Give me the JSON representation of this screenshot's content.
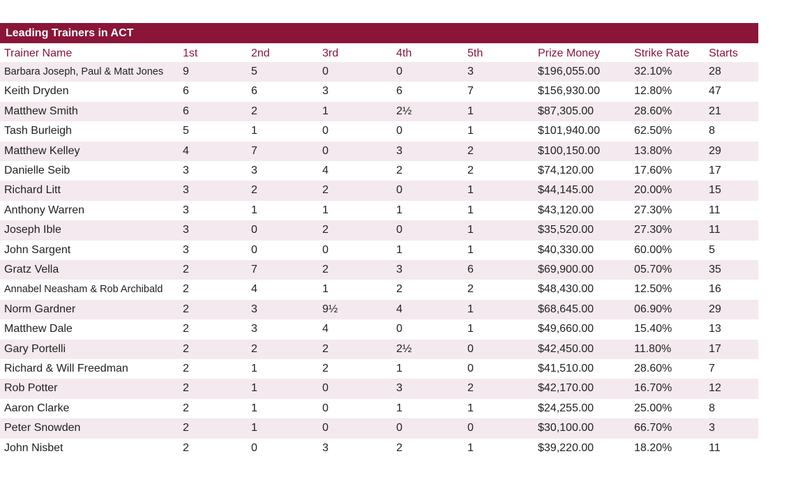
{
  "header": {
    "title": "Leading Trainers in ACT"
  },
  "table": {
    "columns": [
      "Trainer Name",
      "1st",
      "2nd",
      "3rd",
      "4th",
      "5th",
      "Prize Money",
      "Strike Rate",
      "Starts"
    ],
    "rows": [
      [
        "Barbara Joseph, Paul & Matt Jones",
        "9",
        "5",
        "0",
        "0",
        "3",
        "$196,055.00",
        "32.10%",
        "28"
      ],
      [
        "Keith Dryden",
        "6",
        "6",
        "3",
        "6",
        "7",
        "$156,930.00",
        "12.80%",
        "47"
      ],
      [
        "Matthew Smith",
        "6",
        "2",
        "1",
        "2½",
        "1",
        "$87,305.00",
        "28.60%",
        "21"
      ],
      [
        "Tash Burleigh",
        "5",
        "1",
        "0",
        "0",
        "1",
        "$101,940.00",
        "62.50%",
        "8"
      ],
      [
        "Matthew Kelley",
        "4",
        "7",
        "0",
        "3",
        "2",
        "$100,150.00",
        "13.80%",
        "29"
      ],
      [
        "Danielle Seib",
        "3",
        "3",
        "4",
        "2",
        "2",
        "$74,120.00",
        "17.60%",
        "17"
      ],
      [
        "Richard Litt",
        "3",
        "2",
        "2",
        "0",
        "1",
        "$44,145.00",
        "20.00%",
        "15"
      ],
      [
        "Anthony Warren",
        "3",
        "1",
        "1",
        "1",
        "1",
        "$43,120.00",
        "27.30%",
        "11"
      ],
      [
        "Joseph Ible",
        "3",
        "0",
        "2",
        "0",
        "1",
        "$35,520.00",
        "27.30%",
        "11"
      ],
      [
        "John Sargent",
        "3",
        "0",
        "0",
        "1",
        "1",
        "$40,330.00",
        "60.00%",
        "5"
      ],
      [
        "Gratz Vella",
        "2",
        "7",
        "2",
        "3",
        "6",
        "$69,900.00",
        "05.70%",
        "35"
      ],
      [
        "Annabel Neasham & Rob Archibald",
        "2",
        "4",
        "1",
        "2",
        "2",
        "$48,430.00",
        "12.50%",
        "16"
      ],
      [
        "Norm Gardner",
        "2",
        "3",
        "9½",
        "4",
        "1",
        "$68,645.00",
        "06.90%",
        "29"
      ],
      [
        "Matthew Dale",
        "2",
        "3",
        "4",
        "0",
        "1",
        "$49,660.00",
        "15.40%",
        "13"
      ],
      [
        "Gary Portelli",
        "2",
        "2",
        "2",
        "2½",
        "0",
        "$42,450.00",
        "11.80%",
        "17"
      ],
      [
        "Richard & Will Freedman",
        "2",
        "1",
        "2",
        "1",
        "0",
        "$41,510.00",
        "28.60%",
        "7"
      ],
      [
        "Rob Potter",
        "2",
        "1",
        "0",
        "3",
        "2",
        "$42,170.00",
        "16.70%",
        "12"
      ],
      [
        "Aaron Clarke",
        "2",
        "1",
        "0",
        "1",
        "1",
        "$24,255.00",
        "25.00%",
        "8"
      ],
      [
        "Peter Snowden",
        "2",
        "1",
        "0",
        "0",
        "0",
        "$30,100.00",
        "66.70%",
        "3"
      ],
      [
        "John Nisbet",
        "2",
        "0",
        "3",
        "2",
        "1",
        "$39,220.00",
        "18.20%",
        "11"
      ]
    ]
  }
}
